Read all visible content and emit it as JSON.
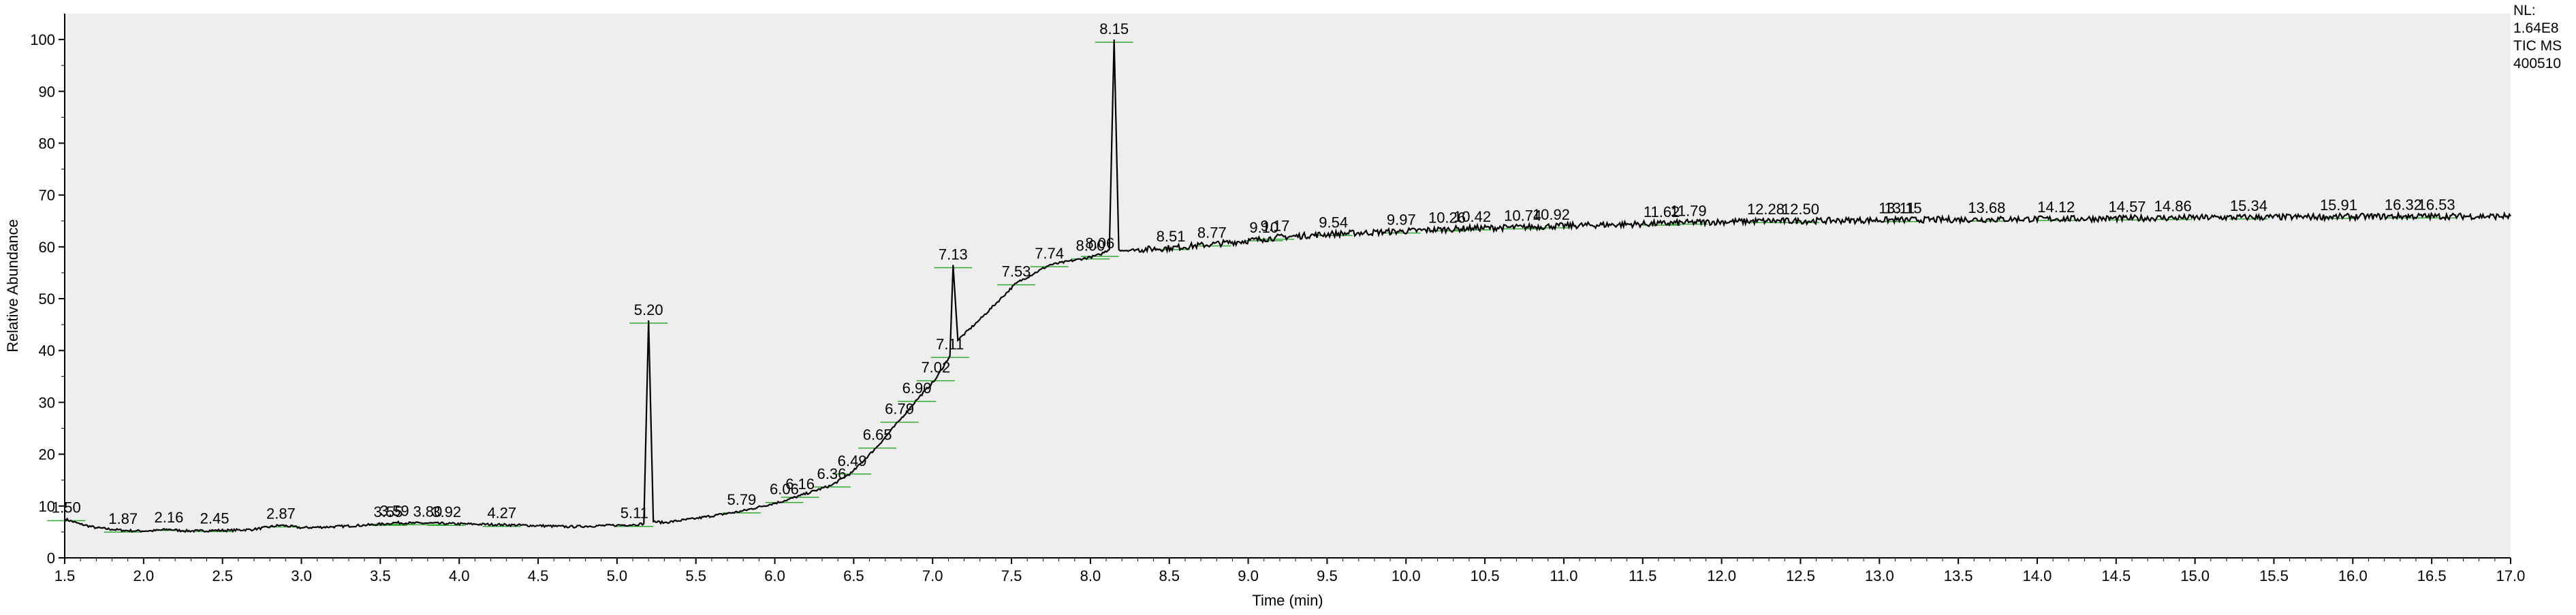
{
  "chart_data": {
    "type": "line",
    "xlabel": "Time (min)",
    "ylabel": "Relative Abundance",
    "xlim": [
      1.5,
      17.0
    ],
    "ylim": [
      0,
      105
    ],
    "xticks": [
      "1.5",
      "2.0",
      "2.5",
      "3.0",
      "3.5",
      "4.0",
      "4.5",
      "5.0",
      "5.5",
      "6.0",
      "6.5",
      "7.0",
      "7.5",
      "8.0",
      "8.5",
      "9.0",
      "9.5",
      "10.0",
      "10.5",
      "11.0",
      "11.5",
      "12.0",
      "12.5",
      "13.0",
      "13.5",
      "14.0",
      "14.5",
      "15.0",
      "15.5",
      "16.0",
      "16.5",
      "17.0"
    ],
    "yticks": [
      "0",
      "10",
      "20",
      "30",
      "40",
      "50",
      "60",
      "70",
      "80",
      "90",
      "100"
    ],
    "grid": false,
    "background": "#eeeeee",
    "line_color": "#000000",
    "baseline_color": "#33aa33",
    "info_text": [
      "NL:",
      "1.64E8",
      "TIC MS",
      "400510"
    ],
    "series": [
      {
        "x": [
          1.5,
          1.6,
          1.7,
          1.8,
          1.87,
          1.95,
          2.05,
          2.16,
          2.25,
          2.35,
          2.45,
          2.55,
          2.7,
          2.87,
          3.0,
          3.2,
          3.4,
          3.55,
          3.59,
          3.7,
          3.8,
          3.92,
          4.1,
          4.27,
          4.5,
          4.7,
          5.0,
          5.11,
          5.17,
          5.2,
          5.23,
          5.3,
          5.5,
          5.79,
          6.06,
          6.16,
          6.36,
          6.49,
          6.65,
          6.79,
          6.9,
          7.02,
          7.11,
          7.13,
          7.16,
          7.3,
          7.53,
          7.74,
          8.0,
          8.06,
          8.12,
          8.15,
          8.18,
          8.2,
          8.51,
          8.77,
          9.1,
          9.17,
          9.54,
          9.97,
          10.26,
          10.42,
          10.74,
          10.92,
          11.62,
          11.79,
          12.28,
          12.5,
          13.11,
          13.15,
          13.68,
          14.12,
          14.57,
          14.86,
          15.34,
          15.91,
          16.32,
          16.53,
          17.0
        ],
        "y": [
          7.5,
          6.5,
          5.8,
          5.5,
          5.3,
          5.2,
          5.2,
          5.5,
          5.2,
          5.2,
          5.3,
          5.3,
          5.5,
          6.3,
          5.8,
          6.0,
          6.3,
          6.6,
          6.8,
          6.7,
          6.7,
          6.6,
          6.5,
          6.4,
          6.2,
          6.0,
          6.3,
          6.4,
          6.6,
          45.8,
          7.0,
          6.8,
          7.6,
          9.0,
          11.0,
          12.0,
          14.0,
          16.5,
          21.5,
          26.5,
          30.5,
          34.5,
          39.0,
          56.5,
          42.0,
          46.0,
          53.0,
          56.5,
          58.0,
          58.5,
          59.5,
          100.0,
          59.5,
          59.3,
          59.8,
          60.5,
          61.5,
          61.8,
          62.5,
          63.0,
          63.4,
          63.6,
          63.8,
          64.0,
          64.5,
          64.7,
          65.0,
          65.0,
          65.2,
          65.2,
          65.3,
          65.4,
          65.5,
          65.6,
          65.7,
          65.8,
          65.9,
          65.9,
          65.9
        ]
      }
    ],
    "peaks": [
      {
        "label": "1.50",
        "x": 1.51,
        "y": 7.7
      },
      {
        "label": "1.87",
        "x": 1.87,
        "y": 5.5
      },
      {
        "label": "2.16",
        "x": 2.16,
        "y": 5.8
      },
      {
        "label": "2.45",
        "x": 2.45,
        "y": 5.6
      },
      {
        "label": "2.87",
        "x": 2.87,
        "y": 6.5
      },
      {
        "label": "3.55",
        "x": 3.55,
        "y": 6.8
      },
      {
        "label": "3.59",
        "x": 3.59,
        "y": 7.0
      },
      {
        "label": "3.80",
        "x": 3.8,
        "y": 6.9
      },
      {
        "label": "3.92",
        "x": 3.92,
        "y": 6.8
      },
      {
        "label": "4.27",
        "x": 4.27,
        "y": 6.6
      },
      {
        "label": "5.11",
        "x": 5.11,
        "y": 6.6
      },
      {
        "label": "5.20",
        "x": 5.2,
        "y": 45.8
      },
      {
        "label": "5.79",
        "x": 5.79,
        "y": 9.2
      },
      {
        "label": "6.06",
        "x": 6.06,
        "y": 11.2
      },
      {
        "label": "6.16",
        "x": 6.16,
        "y": 12.2
      },
      {
        "label": "6.36",
        "x": 6.36,
        "y": 14.2
      },
      {
        "label": "6.49",
        "x": 6.49,
        "y": 16.7
      },
      {
        "label": "6.65",
        "x": 6.65,
        "y": 21.7
      },
      {
        "label": "6.79",
        "x": 6.79,
        "y": 26.7
      },
      {
        "label": "6.90",
        "x": 6.9,
        "y": 30.7
      },
      {
        "label": "7.02",
        "x": 7.02,
        "y": 34.7
      },
      {
        "label": "7.11",
        "x": 7.11,
        "y": 39.2
      },
      {
        "label": "7.13",
        "x": 7.13,
        "y": 56.5
      },
      {
        "label": "7.53",
        "x": 7.53,
        "y": 53.2
      },
      {
        "label": "7.74",
        "x": 7.74,
        "y": 56.7
      },
      {
        "label": "8.00",
        "x": 8.0,
        "y": 58.2
      },
      {
        "label": "8.06",
        "x": 8.06,
        "y": 58.7
      },
      {
        "label": "8.15",
        "x": 8.15,
        "y": 100.0
      },
      {
        "label": "8.51",
        "x": 8.51,
        "y": 60.0
      },
      {
        "label": "8.77",
        "x": 8.77,
        "y": 60.7
      },
      {
        "label": "9.10",
        "x": 9.1,
        "y": 61.7
      },
      {
        "label": "9.17",
        "x": 9.17,
        "y": 62.0
      },
      {
        "label": "9.54",
        "x": 9.54,
        "y": 62.7
      },
      {
        "label": "9.97",
        "x": 9.97,
        "y": 63.2
      },
      {
        "label": "10.26",
        "x": 10.26,
        "y": 63.6
      },
      {
        "label": "10.42",
        "x": 10.42,
        "y": 63.8
      },
      {
        "label": "10.74",
        "x": 10.74,
        "y": 64.0
      },
      {
        "label": "10.92",
        "x": 10.92,
        "y": 64.2
      },
      {
        "label": "11.62",
        "x": 11.62,
        "y": 64.7
      },
      {
        "label": "11.79",
        "x": 11.79,
        "y": 64.9
      },
      {
        "label": "12.28",
        "x": 12.28,
        "y": 65.2
      },
      {
        "label": "12.50",
        "x": 12.5,
        "y": 65.2
      },
      {
        "label": "13.11",
        "x": 13.11,
        "y": 65.4
      },
      {
        "label": "13.15",
        "x": 13.15,
        "y": 65.4
      },
      {
        "label": "13.68",
        "x": 13.68,
        "y": 65.5
      },
      {
        "label": "14.12",
        "x": 14.12,
        "y": 65.6
      },
      {
        "label": "14.57",
        "x": 14.57,
        "y": 65.7
      },
      {
        "label": "14.86",
        "x": 14.86,
        "y": 65.8
      },
      {
        "label": "15.34",
        "x": 15.34,
        "y": 65.9
      },
      {
        "label": "15.91",
        "x": 15.91,
        "y": 66.0
      },
      {
        "label": "16.32",
        "x": 16.32,
        "y": 66.1
      },
      {
        "label": "16.53",
        "x": 16.53,
        "y": 66.1
      }
    ]
  }
}
